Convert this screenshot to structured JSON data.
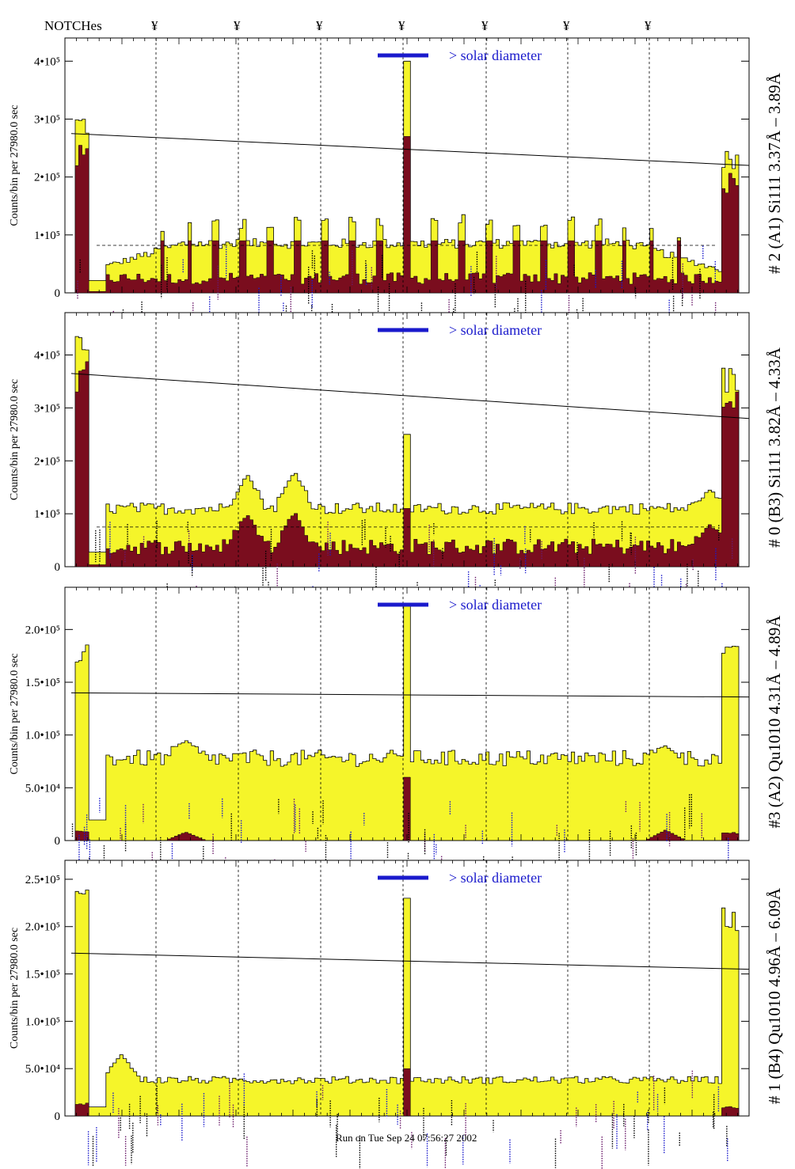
{
  "header": {
    "notches_label": "NOTCHes",
    "notch_symbol": "¥",
    "notch_positions": [
      -3,
      -2,
      -1,
      0,
      1,
      2,
      3
    ]
  },
  "footer": {
    "timestamp": "Run on Tue Sep 24 07:56:27 2002"
  },
  "colors": {
    "fill": "#f5f52a",
    "dark": "#7a0d1e",
    "solar_bar": "#1a1acc",
    "annotation_black": "#000000",
    "annotation_blue": "#1a1acc",
    "annotation_purple": "#6a1a6a"
  },
  "chart_data": [
    {
      "type": "histogram",
      "panel": "#2 (A1)",
      "right_label": "# 2 (A1) Si111  3.37Å – 3.89Å",
      "ylabel": "Counts/bin per  27980.0 sec",
      "solar_label": "> solar diameter",
      "ylim": [
        0,
        440000
      ],
      "yticks": [
        {
          "value": 0,
          "label": "0"
        },
        {
          "value": 100000,
          "label": "1•10⁵"
        },
        {
          "value": 200000,
          "label": "2•10⁵"
        },
        {
          "value": 300000,
          "label": "3•10⁵"
        },
        {
          "value": 400000,
          "label": "4•10⁵"
        }
      ],
      "fill_profile": {
        "baseline": 85000,
        "ramp": "high",
        "edge_left": 315000,
        "edge_right": 250000
      },
      "dark_profile": {
        "baseline": 25000,
        "edge_left": 255000,
        "edge_right": 210000
      },
      "center_peak": {
        "fill": 400000,
        "dark": 270000
      },
      "solid_line": [
        275000,
        220000
      ],
      "dashed_line": 82000,
      "spikes": [
        0.14,
        0.18,
        0.22,
        0.26,
        0.3,
        0.34,
        0.38,
        0.42,
        0.46,
        0.54,
        0.58,
        0.62,
        0.66,
        0.7,
        0.74,
        0.78,
        0.82,
        0.86,
        0.9
      ]
    },
    {
      "type": "histogram",
      "panel": "#0 (B3)",
      "right_label": "# 0 (B3) Si111  3.82Å – 4.33Å",
      "ylabel": "Counts/bin per  27980.0 sec",
      "solar_label": "> solar diameter",
      "ylim": [
        0,
        480000
      ],
      "yticks": [
        {
          "value": 0,
          "label": "0"
        },
        {
          "value": 100000,
          "label": "1•10⁵"
        },
        {
          "value": 200000,
          "label": "2•10⁵"
        },
        {
          "value": 300000,
          "label": "3•10⁵"
        },
        {
          "value": 400000,
          "label": "4•10⁵"
        }
      ],
      "fill_profile": {
        "baseline": 110000,
        "ramp": "flat",
        "edge_left": 440000,
        "edge_right": 380000
      },
      "dark_profile": {
        "baseline": 38000,
        "edge_left": 390000,
        "edge_right": 340000
      },
      "center_peak": {
        "fill": 250000,
        "dark": 110000
      },
      "solid_line": [
        365000,
        280000
      ],
      "dashed_line": 75000,
      "bumps": [
        {
          "pos": 0.265,
          "fill": 175000,
          "dark": 100000
        },
        {
          "pos": 0.335,
          "fill": 180000,
          "dark": 105000
        },
        {
          "pos": 0.945,
          "fill": 145000,
          "dark": 80000
        }
      ],
      "spikes": []
    },
    {
      "type": "histogram",
      "panel": "#3 (A2)",
      "right_label": "#3 (A2) Qu1010  4.31Å – 4.89Å",
      "ylabel": "Counts/bin per  27980.0 sec",
      "solar_label": "> solar diameter",
      "ylim": [
        0,
        240000
      ],
      "yticks": [
        {
          "value": 0,
          "label": "0"
        },
        {
          "value": 50000,
          "label": "5.0•10⁴"
        },
        {
          "value": 100000,
          "label": "1.0•10⁵"
        },
        {
          "value": 150000,
          "label": "1.5•10⁵"
        },
        {
          "value": 200000,
          "label": "2.0•10⁵"
        }
      ],
      "fill_profile": {
        "baseline": 78000,
        "ramp": "flat",
        "edge_left": 195000,
        "edge_right": 185000
      },
      "dark_profile": {
        "baseline": 0,
        "edge_left": 10000,
        "edge_right": 8000
      },
      "center_peak": {
        "fill": 225000,
        "dark": 60000
      },
      "solid_line": [
        140000,
        136000
      ],
      "dashed_line": null,
      "bumps": [
        {
          "pos": 0.175,
          "fill": 95000,
          "dark": 8000
        },
        {
          "pos": 0.88,
          "fill": 90000,
          "dark": 10000
        }
      ],
      "spikes": []
    },
    {
      "type": "histogram",
      "panel": "#1 (B4)",
      "right_label": "# 1 (B4) Qu1010 4.96Å – 6.09Å",
      "ylabel": "Counts/bin per  27980.0 sec",
      "solar_label": "> solar diameter",
      "ylim": [
        0,
        270000
      ],
      "yticks": [
        {
          "value": 0,
          "label": "0"
        },
        {
          "value": 50000,
          "label": "5.0•10⁴"
        },
        {
          "value": 100000,
          "label": "1.0•10⁵"
        },
        {
          "value": 150000,
          "label": "1.5•10⁵"
        },
        {
          "value": 200000,
          "label": "2.0•10⁵"
        },
        {
          "value": 250000,
          "label": "2.5•10⁵"
        }
      ],
      "fill_profile": {
        "baseline": 38000,
        "ramp": "flat",
        "edge_left": 245000,
        "edge_right": 225000
      },
      "dark_profile": {
        "baseline": 0,
        "edge_left": 14000,
        "edge_right": 10000
      },
      "center_peak": {
        "fill": 230000,
        "dark": 50000
      },
      "solid_line": [
        172000,
        155000
      ],
      "dashed_line": null,
      "bumps": [
        {
          "pos": 0.08,
          "fill": 65000,
          "dark": 0
        }
      ],
      "spikes": []
    }
  ]
}
